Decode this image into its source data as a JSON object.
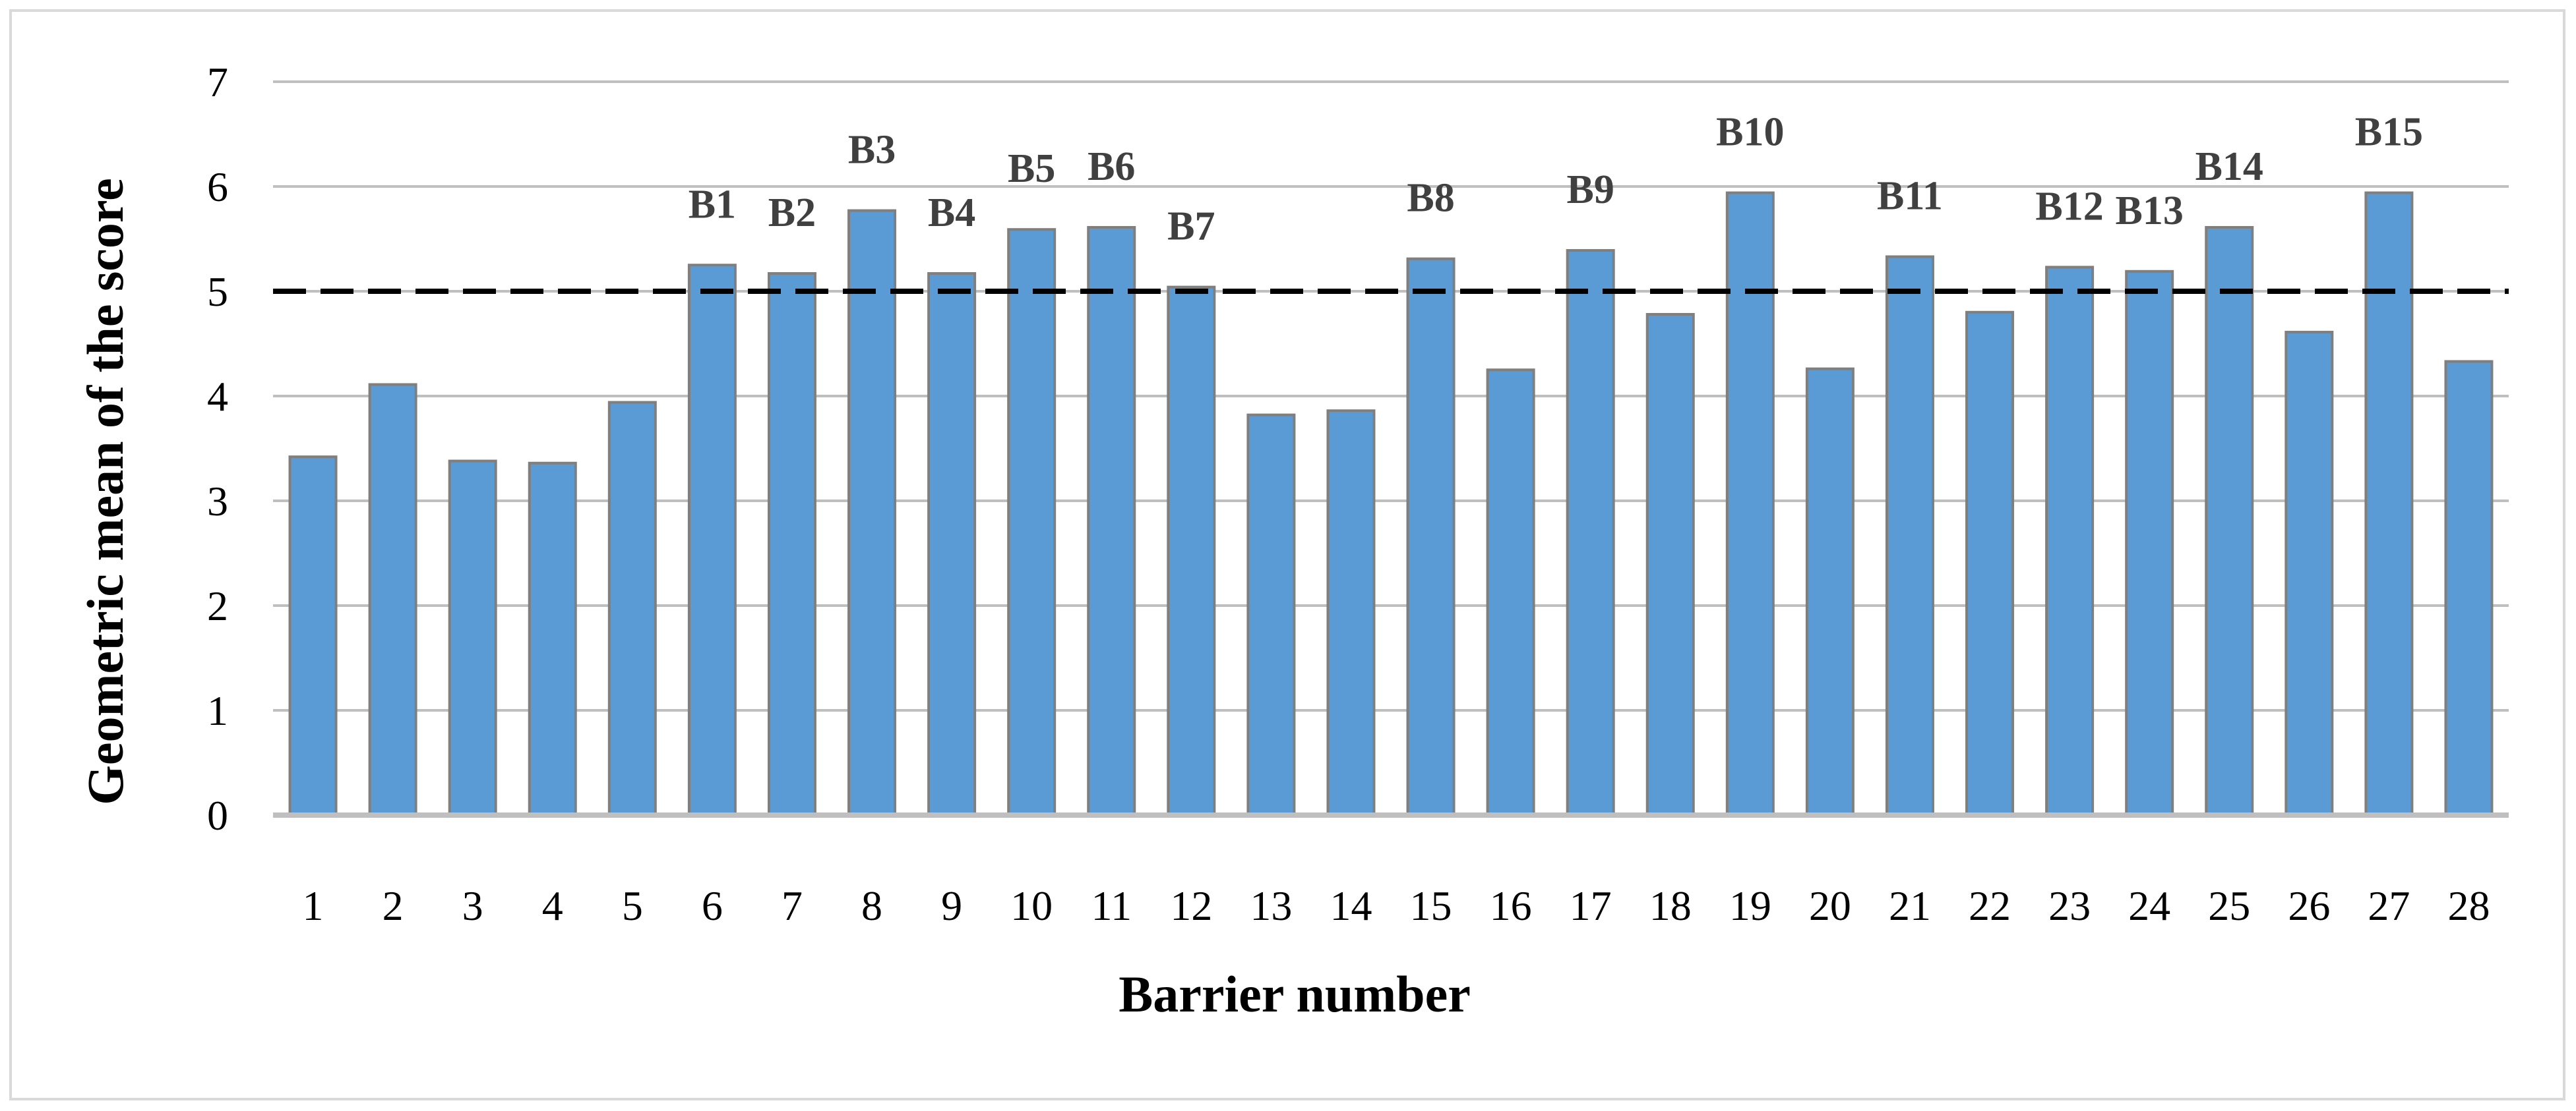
{
  "chart_data": {
    "type": "bar",
    "xlabel": "Barrier number",
    "ylabel": "Geometric mean of the score",
    "ylim": [
      0,
      7
    ],
    "yticks": [
      "0",
      "1",
      "2",
      "3",
      "4",
      "5",
      "6",
      "7"
    ],
    "grid": true,
    "legend": "none",
    "bar_color": "#5b9bd5",
    "bar_edge_color": "#7f7f7f",
    "reference_line": {
      "y": 5,
      "style": "dashed",
      "color": "#000000"
    },
    "categories": [
      "1",
      "2",
      "3",
      "4",
      "5",
      "6",
      "7",
      "8",
      "9",
      "10",
      "11",
      "12",
      "13",
      "14",
      "15",
      "16",
      "17",
      "18",
      "19",
      "20",
      "21",
      "22",
      "23",
      "24",
      "25",
      "26",
      "27",
      "28"
    ],
    "values": [
      3.42,
      4.11,
      3.38,
      3.36,
      3.94,
      5.25,
      5.17,
      5.77,
      5.17,
      5.59,
      5.61,
      5.04,
      3.82,
      3.86,
      5.31,
      4.25,
      5.39,
      4.78,
      5.94,
      4.26,
      5.33,
      4.8,
      5.23,
      5.19,
      5.61,
      4.61,
      5.94,
      4.33
    ],
    "labels": [
      "",
      "",
      "",
      "",
      "",
      "B1",
      "B2",
      "B3",
      "B4",
      "B5",
      "B6",
      "B7",
      "",
      "",
      "B8",
      "",
      "B9",
      "",
      "B10",
      "",
      "B11",
      "",
      "B12",
      "B13",
      "B14",
      "",
      "B15",
      ""
    ]
  }
}
